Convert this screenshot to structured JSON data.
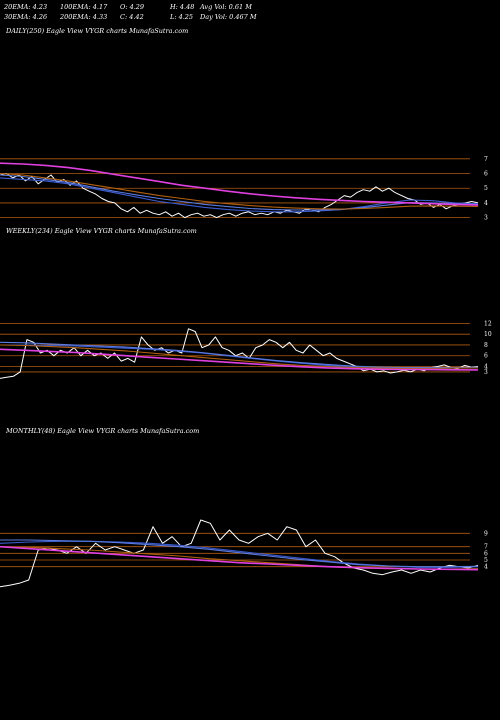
{
  "header": {
    "row1": [
      "20EMA: 4.23",
      "100EMA: 4.17",
      "O: 4.29",
      "H: 4.48",
      "Avg Vol: 0.61 M"
    ],
    "row2": [
      "30EMA: 4.26",
      "200EMA: 4.33",
      "C: 4.42",
      "L: 4.25",
      "Day Vol: 0.467 M"
    ]
  },
  "colors": {
    "background": "#000000",
    "price": "#ffffff",
    "ema_blue": "#3a5bd0",
    "ema_magenta": "#e040e0",
    "ema_orange": "#b06010",
    "grid": "#b05a10"
  },
  "chart_data": [
    {
      "type": "line",
      "title": "DAILY(250) Eagle  View  VYGR charts MunafaSutra.com",
      "y_ticks": [
        "7",
        "6",
        "5",
        "4",
        "3"
      ],
      "y_tick_values": [
        7,
        6,
        5,
        4,
        3
      ],
      "ylim": [
        2.5,
        7.6
      ],
      "series": [
        {
          "role": "price",
          "color": "#ffffff",
          "values": [
            5.9,
            6.0,
            5.7,
            5.9,
            5.5,
            5.8,
            5.3,
            5.6,
            5.9,
            5.4,
            5.6,
            5.2,
            5.5,
            5.0,
            4.8,
            4.6,
            4.3,
            4.1,
            4.0,
            3.6,
            3.4,
            3.7,
            3.3,
            3.5,
            3.3,
            3.2,
            3.4,
            3.1,
            3.3,
            3.0,
            3.2,
            3.3,
            3.1,
            3.2,
            3.0,
            3.2,
            3.3,
            3.1,
            3.3,
            3.4,
            3.2,
            3.3,
            3.2,
            3.4,
            3.3,
            3.5,
            3.4,
            3.3,
            3.6,
            3.5,
            3.4,
            3.7,
            3.9,
            4.2,
            4.5,
            4.4,
            4.7,
            4.9,
            4.8,
            5.1,
            4.8,
            5.0,
            4.7,
            4.5,
            4.3,
            4.2,
            3.9,
            4.0,
            3.7,
            3.9,
            3.6,
            3.8,
            3.9,
            4.0,
            4.1,
            4.0
          ]
        },
        {
          "role": "ema",
          "color": "#3a5bd0",
          "values": [
            5.7,
            5.6,
            5.5,
            5.3,
            5.0,
            4.7,
            4.4,
            4.1,
            3.9,
            3.7,
            3.55,
            3.45,
            3.4,
            3.4,
            3.45,
            3.55,
            3.75,
            4.0,
            4.2,
            4.15,
            4.0,
            3.95
          ]
        },
        {
          "role": "ema",
          "color": "#5a7ae0",
          "values": [
            5.9,
            5.8,
            5.6,
            5.4,
            5.1,
            4.8,
            4.55,
            4.3,
            4.1,
            3.9,
            3.75,
            3.62,
            3.55,
            3.52,
            3.52,
            3.55,
            3.68,
            3.85,
            4.02,
            4.0,
            3.95,
            3.9
          ]
        },
        {
          "role": "ema",
          "color": "#b06010",
          "values": [
            6.0,
            5.9,
            5.7,
            5.5,
            5.25,
            5.0,
            4.75,
            4.5,
            4.3,
            4.1,
            3.95,
            3.82,
            3.72,
            3.65,
            3.6,
            3.58,
            3.62,
            3.7,
            3.78,
            3.8,
            3.78,
            3.76
          ]
        },
        {
          "role": "ema",
          "color": "#e040e0",
          "values": [
            6.7,
            6.65,
            6.55,
            6.4,
            6.2,
            5.95,
            5.7,
            5.45,
            5.2,
            5.0,
            4.8,
            4.62,
            4.47,
            4.35,
            4.25,
            4.17,
            4.1,
            4.05,
            4.0,
            3.95,
            3.9,
            3.85
          ]
        }
      ]
    },
    {
      "type": "line",
      "title": "WEEKLY(234) Eagle  View  VYGR charts MunafaSutra.com",
      "y_ticks": [
        "12",
        "10",
        "8",
        "6",
        "4",
        "3"
      ],
      "y_tick_values": [
        12,
        10,
        8,
        6,
        4,
        3
      ],
      "ylim": [
        1.5,
        13.0
      ],
      "series": [
        {
          "role": "price",
          "color": "#ffffff",
          "values": [
            1.8,
            2.0,
            2.2,
            3.0,
            9.0,
            8.5,
            6.5,
            7.0,
            6.0,
            7.0,
            6.5,
            7.5,
            6.0,
            7.0,
            6.0,
            6.5,
            5.5,
            6.5,
            5.0,
            5.5,
            4.8,
            9.5,
            8.0,
            7.0,
            7.5,
            6.5,
            7.0,
            6.5,
            11.0,
            10.5,
            7.5,
            8.0,
            9.5,
            7.5,
            7.0,
            6.0,
            6.5,
            5.5,
            7.5,
            8.0,
            9.0,
            8.5,
            7.5,
            8.5,
            7.0,
            6.5,
            8.0,
            7.0,
            6.0,
            6.5,
            5.5,
            5.0,
            4.5,
            4.0,
            3.2,
            3.5,
            3.0,
            3.2,
            2.8,
            3.0,
            3.3,
            3.0,
            3.5,
            3.2,
            3.8,
            4.0,
            4.3,
            3.8,
            3.6,
            4.2,
            3.9,
            4.0
          ]
        },
        {
          "role": "ema",
          "color": "#3a5bd0",
          "values": [
            8.0,
            8.0,
            7.9,
            7.8,
            7.6,
            7.4,
            7.2,
            6.9,
            6.5,
            6.0,
            5.5,
            5.0,
            4.6,
            4.2,
            3.9,
            3.7,
            3.6,
            3.6,
            3.7,
            3.8
          ]
        },
        {
          "role": "ema",
          "color": "#5a7ae0",
          "values": [
            8.5,
            8.4,
            8.2,
            8.0,
            7.8,
            7.6,
            7.3,
            7.0,
            6.6,
            6.1,
            5.6,
            5.1,
            4.7,
            4.4,
            4.1,
            3.9,
            3.8,
            3.8,
            3.8,
            3.85
          ]
        },
        {
          "role": "ema",
          "color": "#b06010",
          "values": [
            8.0,
            7.9,
            7.7,
            7.5,
            7.2,
            6.9,
            6.5,
            6.1,
            5.7,
            5.3,
            4.9,
            4.5,
            4.2,
            4.0,
            3.8,
            3.7,
            3.65,
            3.65,
            3.7,
            3.72
          ]
        },
        {
          "role": "ema",
          "color": "#e040e0",
          "values": [
            7.2,
            7.0,
            6.8,
            6.6,
            6.3,
            6.0,
            5.7,
            5.4,
            5.1,
            4.8,
            4.5,
            4.2,
            3.95,
            3.75,
            3.6,
            3.5,
            3.45,
            3.42,
            3.4,
            3.38
          ]
        }
      ]
    },
    {
      "type": "line",
      "title": "MONTHLY(48) Eagle  View  VYGR charts MunafaSutra.com",
      "y_ticks": [
        "9",
        "7",
        "6",
        "5",
        "4"
      ],
      "y_tick_values": [
        9,
        7,
        6,
        5,
        4
      ],
      "ylim": [
        0.5,
        9.8
      ],
      "series": [
        {
          "role": "price",
          "color": "#ffffff",
          "values": [
            1.0,
            1.2,
            1.5,
            2.0,
            6.5,
            6.8,
            6.5,
            6.0,
            7.0,
            6.0,
            7.5,
            6.5,
            7.0,
            6.5,
            6.0,
            6.5,
            10.0,
            7.5,
            8.5,
            7.0,
            7.5,
            11.0,
            10.5,
            8.0,
            9.5,
            8.0,
            7.5,
            8.5,
            9.0,
            8.0,
            10.0,
            9.5,
            7.0,
            8.0,
            6.0,
            5.5,
            4.5,
            3.8,
            3.5,
            3.0,
            2.8,
            3.2,
            3.5,
            3.0,
            3.5,
            3.2,
            3.8,
            4.2,
            4.0,
            3.8,
            4.2
          ]
        },
        {
          "role": "ema",
          "color": "#3a5bd0",
          "values": [
            7.5,
            7.7,
            7.8,
            7.8,
            7.7,
            7.5,
            7.2,
            6.8,
            6.3,
            5.8,
            5.3,
            4.8,
            4.4,
            4.1,
            3.9,
            3.9,
            4.0
          ]
        },
        {
          "role": "ema",
          "color": "#5a7ae0",
          "values": [
            8.0,
            8.0,
            7.9,
            7.8,
            7.6,
            7.3,
            7.0,
            6.6,
            6.1,
            5.6,
            5.1,
            4.7,
            4.3,
            4.1,
            4.0,
            4.0,
            4.05
          ]
        },
        {
          "role": "ema",
          "color": "#b06010",
          "values": [
            7.0,
            6.9,
            6.7,
            6.5,
            6.2,
            5.9,
            5.6,
            5.2,
            4.9,
            4.6,
            4.3,
            4.0,
            3.8,
            3.7,
            3.65,
            3.65,
            3.7
          ]
        },
        {
          "role": "ema",
          "color": "#e040e0",
          "values": [
            7.0,
            6.7,
            6.4,
            6.1,
            5.8,
            5.5,
            5.2,
            4.9,
            4.6,
            4.4,
            4.2,
            4.0,
            3.85,
            3.75,
            3.65,
            3.6,
            3.55
          ]
        }
      ]
    }
  ]
}
